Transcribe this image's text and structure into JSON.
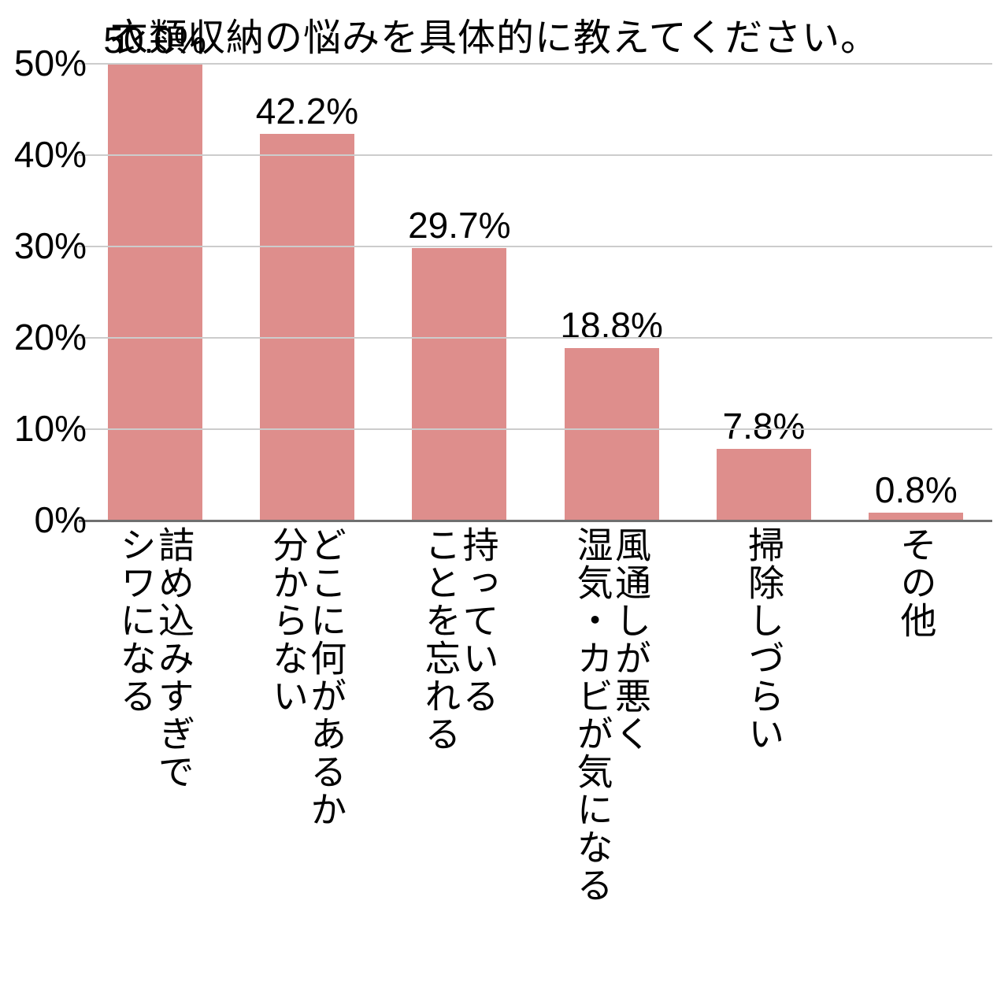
{
  "chart": {
    "type": "bar",
    "title": "衣類収納の悩みを具体的に教えてください。",
    "title_fontsize": 48,
    "background_color": "#ffffff",
    "bar_color": "#de8e8c",
    "grid_color": "#cccccc",
    "axis_color": "#6f6f6f",
    "text_color": "#000000",
    "ylim": [
      0,
      50
    ],
    "yticks": [
      0,
      10,
      20,
      30,
      40,
      50
    ],
    "ytick_labels": [
      "0%",
      "10%",
      "20%",
      "30%",
      "40%",
      "50%"
    ],
    "ylabel_fontsize": 46,
    "bar_label_fontsize": 46,
    "xlabel_fontsize": 46,
    "bar_width_ratio": 0.62,
    "categories": [
      {
        "lines": [
          "詰め込みすぎで",
          "シワになる"
        ],
        "value": 50.0,
        "label": "50.0%"
      },
      {
        "lines": [
          "どこに何があるか",
          "分からない"
        ],
        "value": 42.2,
        "label": "42.2%"
      },
      {
        "lines": [
          "持っている",
          "ことを忘れる"
        ],
        "value": 29.7,
        "label": "29.7%"
      },
      {
        "lines": [
          "風通しが悪く",
          "湿気・カビが気になる"
        ],
        "value": 18.8,
        "label": "18.8%"
      },
      {
        "lines": [
          "掃除しづらい"
        ],
        "value": 7.8,
        "label": "7.8%"
      },
      {
        "lines": [
          "その他"
        ],
        "value": 0.8,
        "label": "0.8%"
      }
    ]
  }
}
